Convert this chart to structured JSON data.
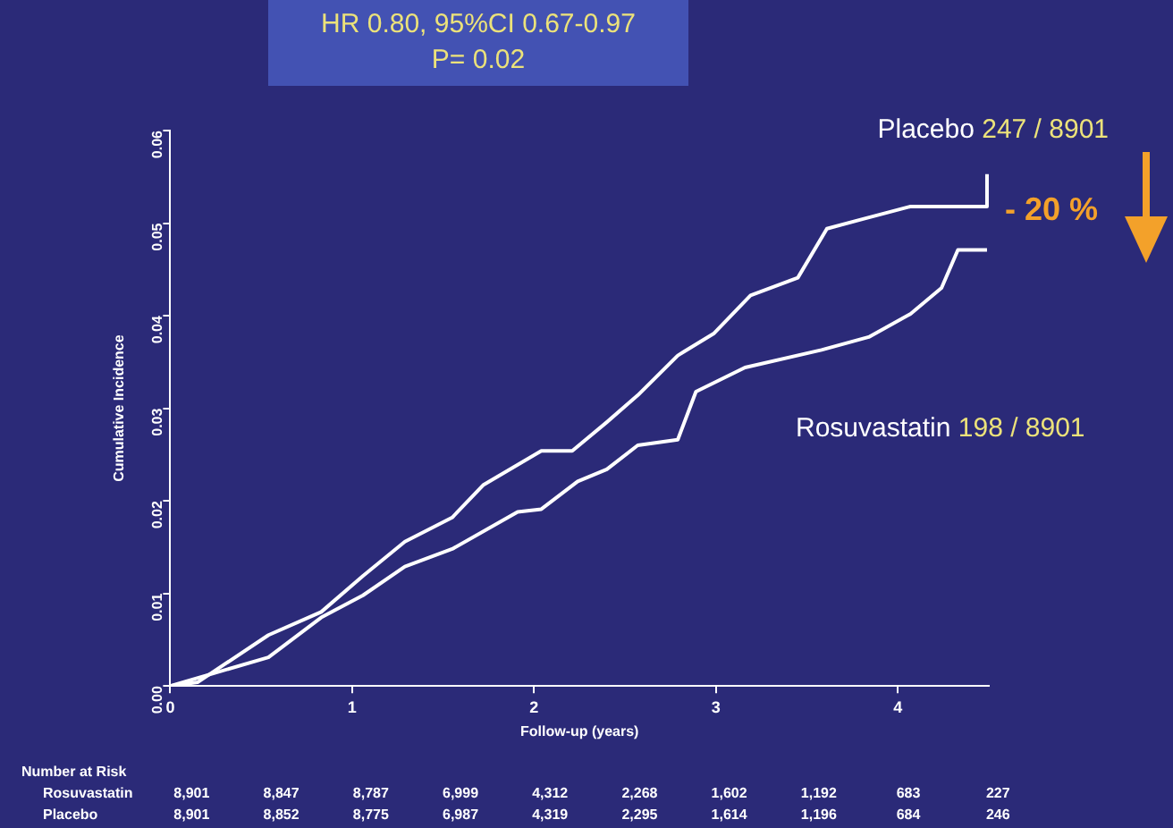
{
  "chart_data": {
    "type": "line",
    "xlabel": "Follow-up (years)",
    "ylabel": "Cumulative Incidence",
    "xlim": [
      0,
      4.5
    ],
    "xticks": [
      0,
      1,
      2,
      3,
      4
    ],
    "ylim": [
      0,
      0.06
    ],
    "yticks": [
      {
        "value": 0,
        "label": "0.00"
      },
      {
        "value": 0.01,
        "label": "0.01"
      },
      {
        "value": 0.02,
        "label": "0.02"
      },
      {
        "value": 0.03,
        "label": "0.03"
      },
      {
        "value": 0.04,
        "label": "0.04"
      },
      {
        "value": 0.05,
        "label": "0.05"
      },
      {
        "value": 0.06,
        "label": "0.06"
      }
    ],
    "grid": false,
    "legend": false,
    "marker": "none",
    "line_style": "solid",
    "series": [
      {
        "name": "Placebo",
        "color": "#ffffff",
        "x": [
          0,
          0.15,
          0.54,
          0.83,
          1.06,
          1.29,
          1.55,
          1.72,
          2.04,
          2.21,
          2.4,
          2.57,
          2.79,
          2.99,
          3.19,
          3.45,
          3.61,
          3.8,
          4.07,
          4.49,
          4.49
        ],
        "values": [
          0,
          0.0004,
          0.0055,
          0.008,
          0.0119,
          0.0156,
          0.0182,
          0.0217,
          0.0254,
          0.0254,
          0.0285,
          0.0314,
          0.0357,
          0.0381,
          0.0422,
          0.0441,
          0.0494,
          0.0504,
          0.0518,
          0.0518,
          0.0553
        ]
      },
      {
        "name": "Rosuvastatin",
        "color": "#ffffff",
        "x": [
          0,
          0.54,
          0.83,
          1.06,
          1.29,
          1.55,
          1.91,
          2.04,
          2.24,
          2.4,
          2.57,
          2.79,
          2.89,
          3.16,
          3.58,
          3.84,
          4.07,
          4.24,
          4.33,
          4.49
        ],
        "values": [
          0,
          0.0031,
          0.0074,
          0.0098,
          0.0129,
          0.0148,
          0.0188,
          0.0191,
          0.0221,
          0.0234,
          0.026,
          0.0266,
          0.0318,
          0.0344,
          0.0363,
          0.0377,
          0.0402,
          0.043,
          0.0471,
          0.0471
        ]
      }
    ],
    "annotations": [
      "HR 0.80, 95%CI 0.67-0.97",
      "P= 0.02",
      "247 / 8901",
      "198 / 8901",
      "- 20 %",
      "Number at Risk",
      "Rosuvastatin 8,901 8,847 8,787 6,999 4,312 2,268 1,602 1,192 683 227",
      "Placebo 8,901 8,852 8,775 6,987 4,319 2,295 1,614 1,196 684 246"
    ]
  }
}
